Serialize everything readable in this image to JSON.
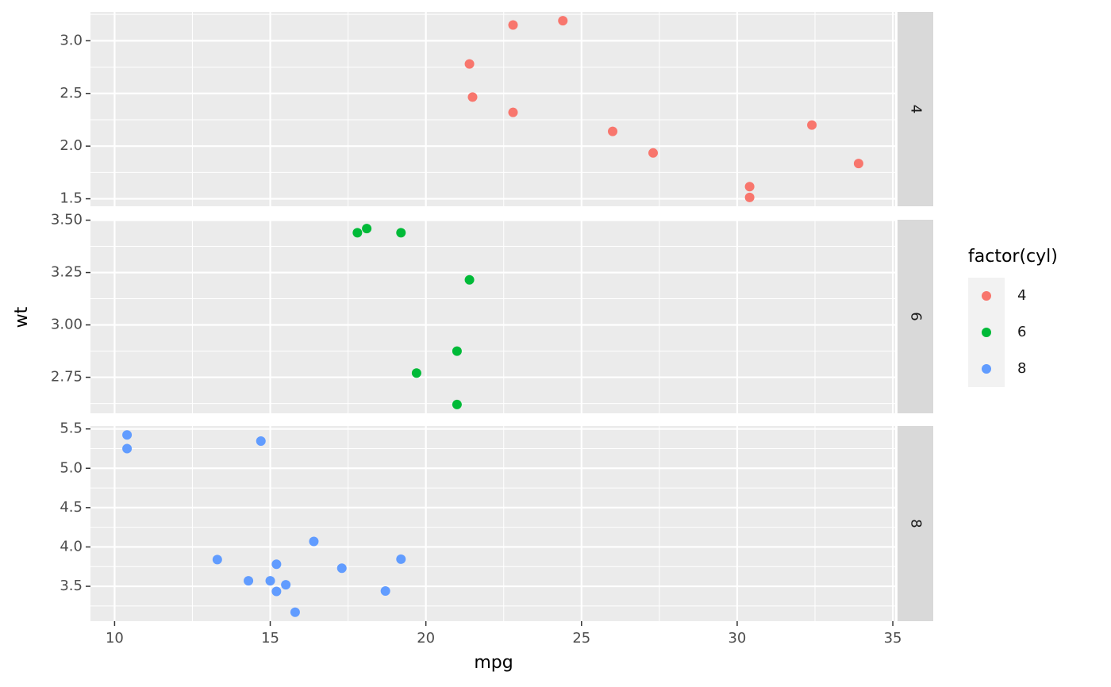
{
  "chart_data": {
    "type": "scatter",
    "x_label": "mpg",
    "y_label": "wt",
    "legend_title": "factor(cyl)",
    "grid": true,
    "xlim": [
      9.225,
      35.075
    ],
    "xticks": [
      10,
      15,
      20,
      25,
      30,
      35
    ],
    "series": [
      {
        "name": "4",
        "color": "#F8766D",
        "x": [
          22.8,
          24.4,
          22.8,
          32.4,
          30.4,
          33.9,
          21.5,
          27.3,
          26.0,
          30.4,
          21.4
        ],
        "values": [
          2.32,
          3.19,
          3.15,
          2.2,
          1.615,
          1.835,
          2.465,
          1.935,
          2.14,
          1.513,
          2.78
        ],
        "ylim": [
          1.429,
          3.274
        ],
        "yticks": [
          {
            "value": 1.5,
            "label": "1.5"
          },
          {
            "value": 2,
            "label": "2.0"
          },
          {
            "value": 2.5,
            "label": "2.5"
          },
          {
            "value": 3,
            "label": "3.0"
          }
        ]
      },
      {
        "name": "6",
        "color": "#00BA38",
        "x": [
          21.0,
          21.0,
          21.4,
          18.1,
          19.2,
          17.8,
          19.7
        ],
        "values": [
          2.62,
          2.875,
          3.215,
          3.46,
          3.44,
          3.44,
          2.77
        ],
        "ylim": [
          2.578,
          3.502
        ],
        "yticks": [
          {
            "value": 2.75,
            "label": "2.75"
          },
          {
            "value": 3,
            "label": "3.00"
          },
          {
            "value": 3.25,
            "label": "3.25"
          },
          {
            "value": 3.5,
            "label": "3.50"
          }
        ]
      },
      {
        "name": "8",
        "color": "#619CFF",
        "x": [
          18.7,
          14.3,
          16.4,
          17.3,
          15.2,
          10.4,
          10.4,
          14.7,
          15.5,
          15.2,
          13.3,
          19.2,
          15.8,
          15.0
        ],
        "values": [
          3.44,
          3.57,
          4.07,
          3.73,
          3.78,
          5.25,
          5.424,
          5.345,
          3.52,
          3.435,
          3.84,
          3.845,
          3.17,
          3.57
        ],
        "ylim": [
          3.057,
          5.537
        ],
        "yticks": [
          {
            "value": 3.5,
            "label": "3.5"
          },
          {
            "value": 4,
            "label": "4.0"
          },
          {
            "value": 4.5,
            "label": "4.5"
          },
          {
            "value": 5,
            "label": "5.0"
          },
          {
            "value": 5.5,
            "label": "5.5"
          }
        ]
      }
    ]
  }
}
